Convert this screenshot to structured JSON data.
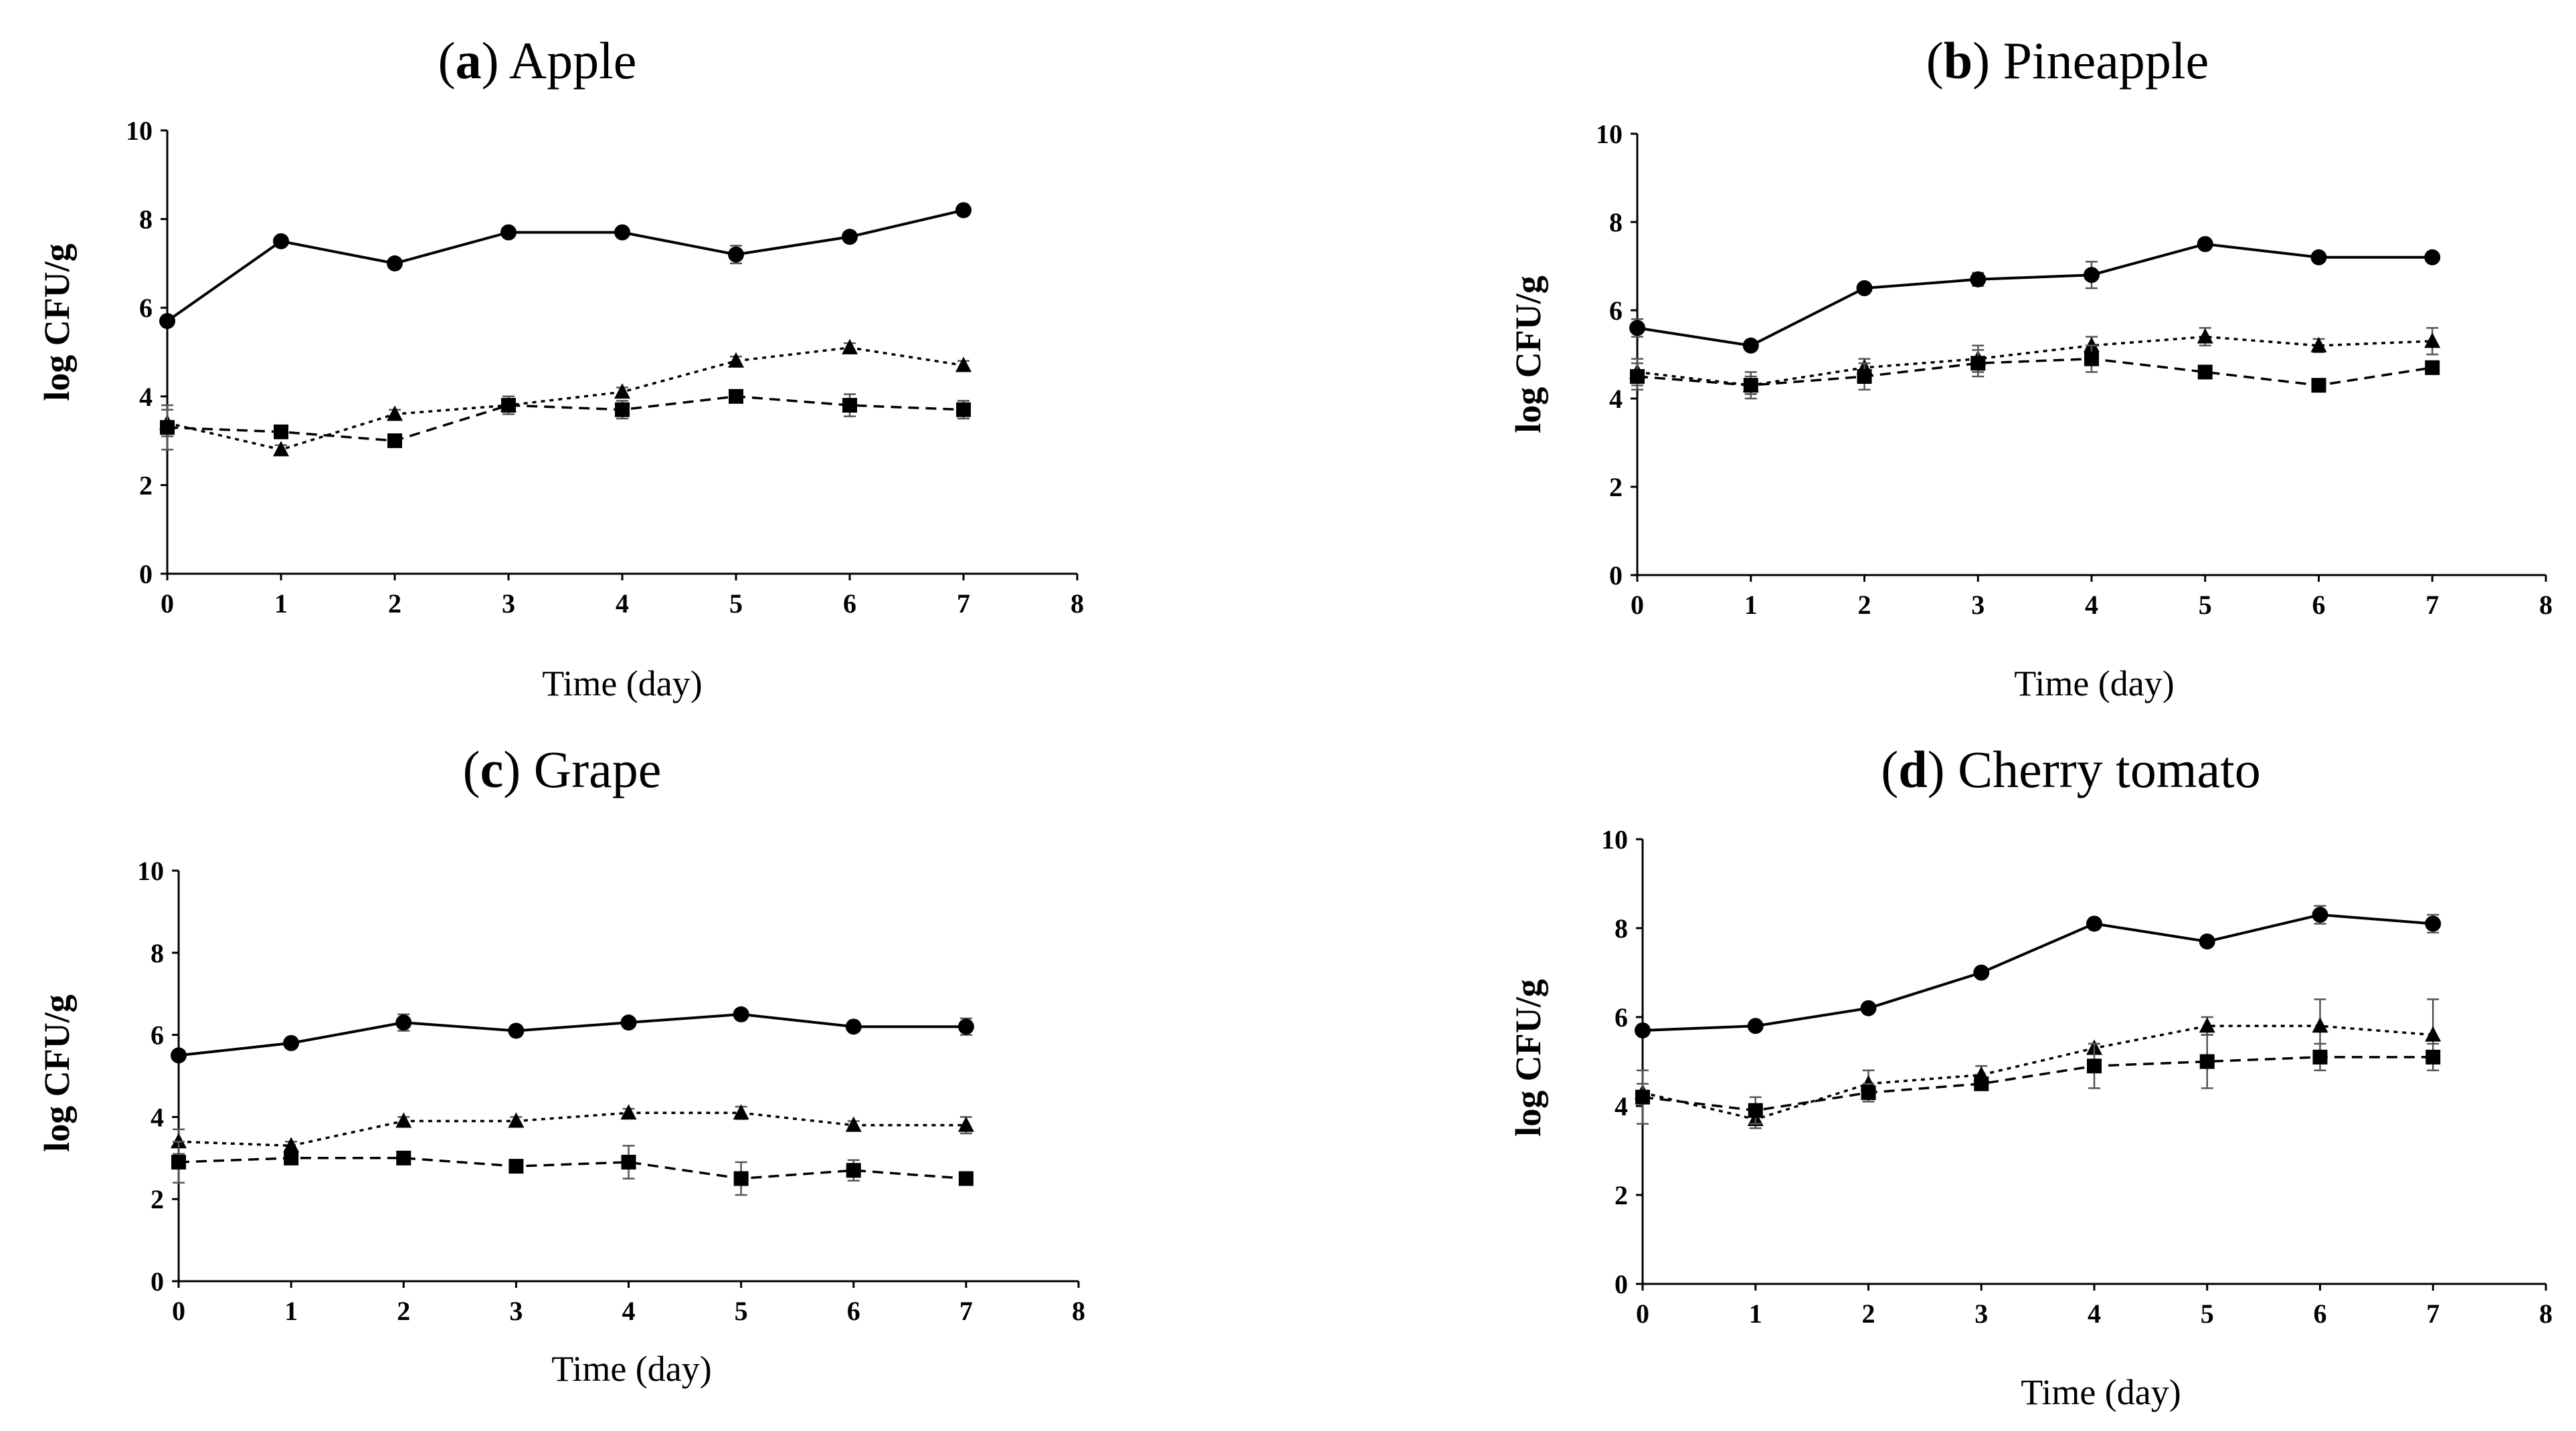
{
  "figure": {
    "panels_order": [
      "a",
      "b",
      "c",
      "d"
    ]
  },
  "chart_data": [
    {
      "type": "line",
      "panel_letter": "a",
      "title": "Apple",
      "xlabel": "Time (day)",
      "ylabel": "log CFU/g",
      "xlim": [
        0,
        8
      ],
      "ylim": [
        0,
        10
      ],
      "x_ticks": [
        "0",
        "1",
        "2",
        "3",
        "4",
        "5",
        "6",
        "7",
        "8"
      ],
      "y_ticks": [
        "0",
        "2",
        "4",
        "6",
        "8",
        "10"
      ],
      "x": [
        0,
        1,
        2,
        3,
        4,
        5,
        6,
        7
      ],
      "grid": false,
      "series": [
        {
          "marker": "circle",
          "line_style": "solid",
          "values": [
            5.7,
            7.5,
            7.0,
            7.7,
            7.7,
            7.2,
            7.6,
            8.2
          ],
          "errors": [
            0.1,
            0.1,
            0.1,
            0.1,
            0.1,
            0.2,
            0.1,
            0.1
          ]
        },
        {
          "marker": "triangle",
          "line_style": "dotted",
          "values": [
            3.4,
            2.8,
            3.6,
            3.8,
            4.1,
            4.8,
            5.1,
            4.7
          ],
          "errors": [
            0.3,
            0.1,
            0.1,
            0.1,
            0.1,
            0.1,
            0.1,
            0.1
          ]
        },
        {
          "marker": "square",
          "line_style": "dashed",
          "values": [
            3.3,
            3.2,
            3.0,
            3.8,
            3.7,
            4.0,
            3.8,
            3.7
          ],
          "errors": [
            0.5,
            0.1,
            0.1,
            0.2,
            0.2,
            0.1,
            0.25,
            0.2
          ]
        }
      ]
    },
    {
      "type": "line",
      "panel_letter": "b",
      "title": "Pineapple",
      "xlabel": "Time (day)",
      "ylabel": "log CFU/g",
      "xlim": [
        0,
        8
      ],
      "ylim": [
        0,
        10
      ],
      "x_ticks": [
        "0",
        "1",
        "2",
        "3",
        "4",
        "5",
        "6",
        "7",
        "8"
      ],
      "y_ticks": [
        "0",
        "2",
        "4",
        "6",
        "8",
        "10"
      ],
      "x": [
        0,
        1,
        2,
        3,
        4,
        5,
        6,
        7
      ],
      "grid": false,
      "series": [
        {
          "marker": "circle",
          "line_style": "solid",
          "values": [
            5.6,
            5.2,
            6.5,
            6.7,
            6.8,
            7.5,
            7.2,
            7.2
          ],
          "errors": [
            0.2,
            0.1,
            0.1,
            0.15,
            0.3,
            0.1,
            0.1,
            0.1
          ]
        },
        {
          "marker": "triangle",
          "line_style": "dotted",
          "values": [
            4.6,
            4.3,
            4.7,
            4.9,
            5.2,
            5.4,
            5.2,
            5.3
          ],
          "errors": [
            0.3,
            0.2,
            0.2,
            0.3,
            0.2,
            0.2,
            0.15,
            0.3
          ]
        },
        {
          "marker": "square",
          "line_style": "dashed",
          "values": [
            4.5,
            4.3,
            4.5,
            4.8,
            4.9,
            4.6,
            4.3,
            4.7
          ],
          "errors": [
            0.3,
            0.3,
            0.3,
            0.3,
            0.3,
            0.1,
            0.1,
            0.1
          ]
        }
      ]
    },
    {
      "type": "line",
      "panel_letter": "c",
      "title": "Grape",
      "xlabel": "Time (day)",
      "ylabel": "log CFU/g",
      "xlim": [
        0,
        8
      ],
      "ylim": [
        0,
        10
      ],
      "x_ticks": [
        "0",
        "1",
        "2",
        "3",
        "4",
        "5",
        "6",
        "7",
        "8"
      ],
      "y_ticks": [
        "0",
        "2",
        "4",
        "6",
        "8",
        "10"
      ],
      "x": [
        0,
        1,
        2,
        3,
        4,
        5,
        6,
        7
      ],
      "grid": false,
      "series": [
        {
          "marker": "circle",
          "line_style": "solid",
          "values": [
            5.5,
            5.8,
            6.3,
            6.1,
            6.3,
            6.5,
            6.2,
            6.2
          ],
          "errors": [
            0.1,
            0.1,
            0.2,
            0.1,
            0.1,
            0.1,
            0.1,
            0.2
          ]
        },
        {
          "marker": "triangle",
          "line_style": "dotted",
          "values": [
            3.4,
            3.3,
            3.9,
            3.9,
            4.1,
            4.1,
            3.8,
            3.8
          ],
          "errors": [
            0.3,
            0.1,
            0.1,
            0.1,
            0.1,
            0.15,
            0.1,
            0.2
          ]
        },
        {
          "marker": "square",
          "line_style": "dashed",
          "values": [
            2.9,
            3.0,
            3.0,
            2.8,
            2.9,
            2.5,
            2.7,
            2.5
          ],
          "errors": [
            0.5,
            0.1,
            0.1,
            0.1,
            0.4,
            0.4,
            0.25,
            0.1
          ]
        }
      ]
    },
    {
      "type": "line",
      "panel_letter": "d",
      "title": "Cherry tomato",
      "xlabel": "Time (day)",
      "ylabel": "log CFU/g",
      "xlim": [
        0,
        8
      ],
      "ylim": [
        0,
        10
      ],
      "x_ticks": [
        "0",
        "1",
        "2",
        "3",
        "4",
        "5",
        "6",
        "7",
        "8"
      ],
      "y_ticks": [
        "0",
        "2",
        "4",
        "6",
        "8",
        "10"
      ],
      "x": [
        0,
        1,
        2,
        3,
        4,
        5,
        6,
        7
      ],
      "grid": false,
      "series": [
        {
          "marker": "circle",
          "line_style": "solid",
          "values": [
            5.7,
            5.8,
            6.2,
            7.0,
            8.1,
            7.7,
            8.3,
            8.1
          ],
          "errors": [
            0.1,
            0.1,
            0.1,
            0.1,
            0.1,
            0.1,
            0.2,
            0.2
          ]
        },
        {
          "marker": "triangle",
          "line_style": "dotted",
          "values": [
            4.3,
            3.7,
            4.5,
            4.7,
            5.3,
            5.8,
            5.8,
            5.6
          ],
          "errors": [
            0.2,
            0.2,
            0.3,
            0.2,
            0.1,
            0.2,
            0.6,
            0.8
          ]
        },
        {
          "marker": "square",
          "line_style": "dashed",
          "values": [
            4.2,
            3.9,
            4.3,
            4.5,
            4.9,
            5.0,
            5.1,
            5.1
          ],
          "errors": [
            0.6,
            0.3,
            0.2,
            0.1,
            0.5,
            0.6,
            0.3,
            0.3
          ]
        }
      ]
    }
  ]
}
